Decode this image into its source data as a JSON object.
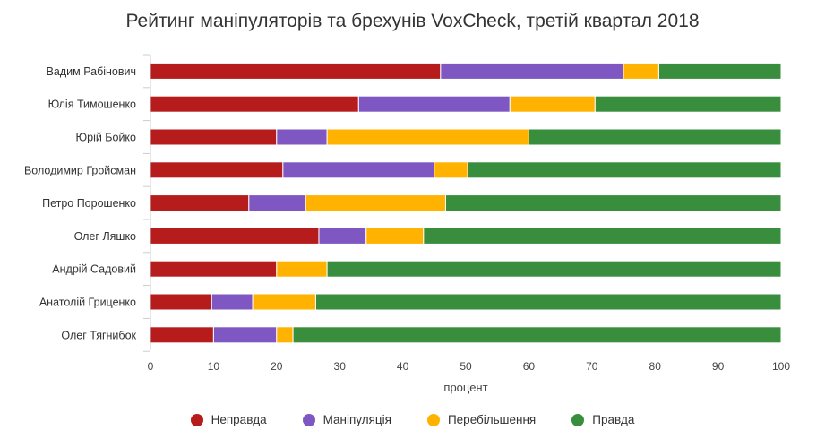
{
  "chart_data": {
    "type": "bar",
    "orientation": "horizontal",
    "stacked": true,
    "title": "Рейтинг маніпуляторів та брехунів VoxCheck, третій квартал 2018",
    "xlabel": "процент",
    "ylabel": "",
    "xlim": [
      0,
      100
    ],
    "xticks": [
      0,
      10,
      20,
      30,
      40,
      50,
      60,
      70,
      80,
      90,
      100
    ],
    "categories": [
      "Вадим Рабінович",
      "Юлія Тимошенко",
      "Юрій Бойко",
      "Володимир Гройсман",
      "Петро Порошенко",
      "Олег Ляшко",
      "Андрій Садовий",
      "Анатолій Гриценко",
      "Олег Тягнибок"
    ],
    "series": [
      {
        "name": "Неправда",
        "color": "#b71c1c",
        "values": [
          46,
          33,
          20,
          21,
          15.6,
          26.7,
          20,
          9.7,
          10
        ]
      },
      {
        "name": "Маніпуляція",
        "color": "#7e57c2",
        "values": [
          29,
          24,
          8,
          24,
          9,
          7.5,
          0,
          6.5,
          10
        ]
      },
      {
        "name": "Перебільшення",
        "color": "#ffb300",
        "values": [
          5.6,
          13.5,
          32,
          5.3,
          22.2,
          9.1,
          8,
          10,
          2.6
        ]
      },
      {
        "name": "Правда",
        "color": "#388e3c",
        "values": [
          19.4,
          29.5,
          40,
          49.7,
          53.2,
          56.7,
          72,
          73.8,
          77.4
        ]
      }
    ],
    "legend_position": "bottom",
    "grid": false
  }
}
